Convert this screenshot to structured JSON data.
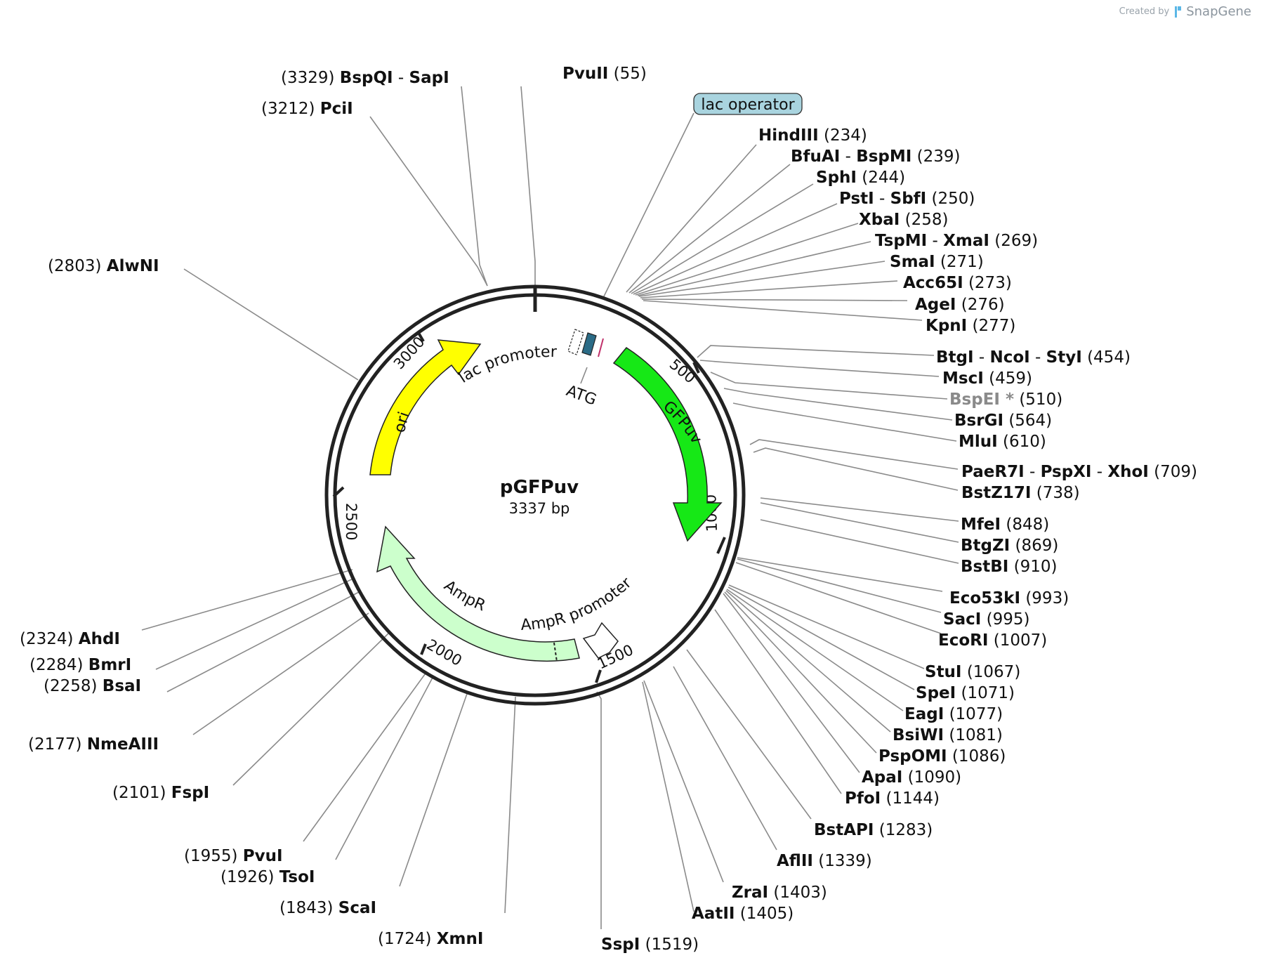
{
  "credit": {
    "prefix": "Created by",
    "brand": "SnapGene"
  },
  "plasmid": {
    "name": "pGFPuv",
    "size_label": "3337 bp"
  },
  "ticks": [
    "500",
    "1000",
    "1500",
    "2000",
    "2500",
    "3000"
  ],
  "features": {
    "lac_operator": "lac operator",
    "lac_promoter": "lac promoter",
    "atg": "ATG",
    "gfpuv": "GFPuv",
    "ori": "ori",
    "ampr": "AmpR",
    "ampr_promoter": "AmpR promoter"
  },
  "colors": {
    "gfpuv": "#16e816",
    "ori": "#ffff00",
    "ampr": "#ccffcc",
    "lac_operator": "#a9d4df",
    "backbone": "#222222"
  },
  "sites": [
    {
      "pos": "(3329)",
      "parts": [
        "BspQI",
        "SapI"
      ]
    },
    {
      "pos": "(3212)",
      "parts": [
        "PciI"
      ]
    },
    {
      "pos": "(55)",
      "parts": [
        "PvuII"
      ]
    },
    {
      "pos": "(2803)",
      "parts": [
        "AlwNI"
      ]
    },
    {
      "pos": "(234)",
      "parts": [
        "HindIII"
      ]
    },
    {
      "pos": "(239)",
      "parts": [
        "BfuAI",
        "BspMI"
      ]
    },
    {
      "pos": "(244)",
      "parts": [
        "SphI"
      ]
    },
    {
      "pos": "(250)",
      "parts": [
        "PstI",
        "SbfI"
      ]
    },
    {
      "pos": "(258)",
      "parts": [
        "XbaI"
      ]
    },
    {
      "pos": "(269)",
      "parts": [
        "TspMI",
        "XmaI"
      ]
    },
    {
      "pos": "(271)",
      "parts": [
        "SmaI"
      ]
    },
    {
      "pos": "(273)",
      "parts": [
        "Acc65I"
      ]
    },
    {
      "pos": "(276)",
      "parts": [
        "AgeI"
      ]
    },
    {
      "pos": "(277)",
      "parts": [
        "KpnI"
      ]
    },
    {
      "pos": "(454)",
      "parts": [
        "BtgI",
        "NcoI",
        "StyI"
      ]
    },
    {
      "pos": "(459)",
      "parts": [
        "MscI"
      ]
    },
    {
      "pos": "(510)",
      "parts": [
        "BspEI"
      ],
      "star": "*"
    },
    {
      "pos": "(564)",
      "parts": [
        "BsrGI"
      ]
    },
    {
      "pos": "(610)",
      "parts": [
        "MluI"
      ]
    },
    {
      "pos": "(709)",
      "parts": [
        "PaeR7I",
        "PspXI",
        "XhoI"
      ]
    },
    {
      "pos": "(738)",
      "parts": [
        "BstZ17I"
      ]
    },
    {
      "pos": "(848)",
      "parts": [
        "MfeI"
      ]
    },
    {
      "pos": "(869)",
      "parts": [
        "BtgZI"
      ]
    },
    {
      "pos": "(910)",
      "parts": [
        "BstBI"
      ]
    },
    {
      "pos": "(993)",
      "parts": [
        "Eco53kI"
      ]
    },
    {
      "pos": "(995)",
      "parts": [
        "SacI"
      ]
    },
    {
      "pos": "(1007)",
      "parts": [
        "EcoRI"
      ]
    },
    {
      "pos": "(1067)",
      "parts": [
        "StuI"
      ]
    },
    {
      "pos": "(1071)",
      "parts": [
        "SpeI"
      ]
    },
    {
      "pos": "(1077)",
      "parts": [
        "EagI"
      ]
    },
    {
      "pos": "(1081)",
      "parts": [
        "BsiWI"
      ]
    },
    {
      "pos": "(1086)",
      "parts": [
        "PspOMI"
      ]
    },
    {
      "pos": "(1090)",
      "parts": [
        "ApaI"
      ]
    },
    {
      "pos": "(1144)",
      "parts": [
        "PfoI"
      ]
    },
    {
      "pos": "(1283)",
      "parts": [
        "BstAPI"
      ]
    },
    {
      "pos": "(1339)",
      "parts": [
        "AflII"
      ]
    },
    {
      "pos": "(1403)",
      "parts": [
        "ZraI"
      ]
    },
    {
      "pos": "(1405)",
      "parts": [
        "AatII"
      ]
    },
    {
      "pos": "(1519)",
      "parts": [
        "SspI"
      ]
    },
    {
      "pos": "(2324)",
      "parts": [
        "AhdI"
      ]
    },
    {
      "pos": "(2284)",
      "parts": [
        "BmrI"
      ]
    },
    {
      "pos": "(2258)",
      "parts": [
        "BsaI"
      ]
    },
    {
      "pos": "(2177)",
      "parts": [
        "NmeAIII"
      ]
    },
    {
      "pos": "(2101)",
      "parts": [
        "FspI"
      ]
    },
    {
      "pos": "(1955)",
      "parts": [
        "PvuI"
      ]
    },
    {
      "pos": "(1926)",
      "parts": [
        "TsoI"
      ]
    },
    {
      "pos": "(1843)",
      "parts": [
        "ScaI"
      ]
    },
    {
      "pos": "(1724)",
      "parts": [
        "XmnI"
      ]
    }
  ]
}
